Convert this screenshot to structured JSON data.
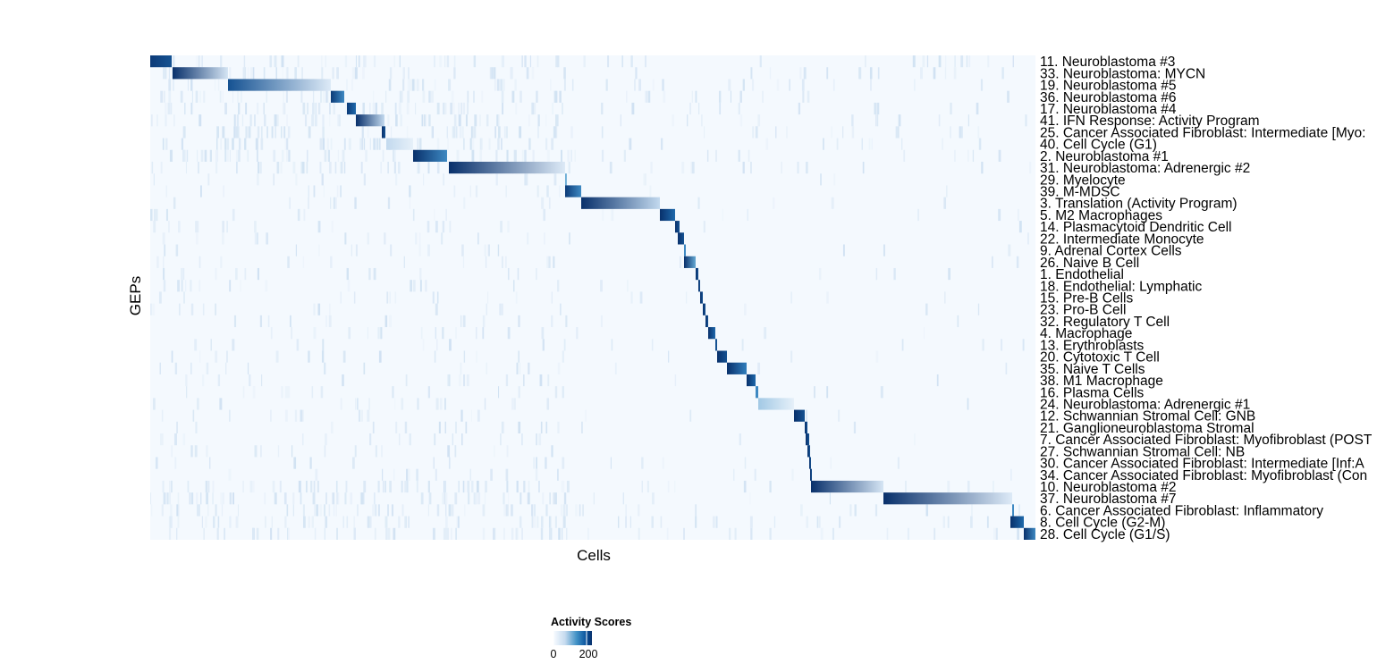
{
  "chart_data": {
    "type": "heatmap",
    "xlabel": "Cells",
    "ylabel": "GEPs",
    "n_cells": 990,
    "legend": {
      "title": "Activity Scores",
      "ticks": [
        0,
        200
      ],
      "range": [
        0,
        230
      ],
      "placement": "bottom"
    },
    "colorscale": [
      "#f7fbff",
      "#c6dbef",
      "#6baed6",
      "#2171b5",
      "#08306b"
    ],
    "rows": [
      {
        "label": "11. Neuroblastoma #3",
        "start": 0,
        "end": 24,
        "v0": 220,
        "v1": 200
      },
      {
        "label": "33. Neuroblastoma: MYCN",
        "start": 25,
        "end": 87,
        "v0": 230,
        "v1": 40
      },
      {
        "label": "19. Neuroblastoma #5",
        "start": 87,
        "end": 202,
        "v0": 200,
        "v1": 30
      },
      {
        "label": "36. Neuroblastoma #6",
        "start": 202,
        "end": 217,
        "v0": 220,
        "v1": 150
      },
      {
        "label": "17. Neuroblastoma #4",
        "start": 220,
        "end": 230,
        "v0": 220,
        "v1": 180
      },
      {
        "label": "41. IFN Response: Activity Program",
        "start": 230,
        "end": 262,
        "v0": 230,
        "v1": 60
      },
      {
        "label": "25. Cancer Associated Fibroblast: Intermediate [Myo:",
        "start": 259,
        "end": 263,
        "v0": 230,
        "v1": 200
      },
      {
        "label": "40. Cell Cycle (G1)",
        "start": 264,
        "end": 294,
        "v0": 60,
        "v1": 20
      },
      {
        "label": "2. Neuroblastoma #1",
        "start": 294,
        "end": 332,
        "v0": 230,
        "v1": 150
      },
      {
        "label": "31. Neuroblastoma: Adrenergic #2",
        "start": 334,
        "end": 464,
        "v0": 230,
        "v1": 30
      },
      {
        "label": "29. Myelocyte",
        "start": 464,
        "end": 466,
        "v0": 120,
        "v1": 100
      },
      {
        "label": "39. M-MDSC",
        "start": 464,
        "end": 482,
        "v0": 220,
        "v1": 150
      },
      {
        "label": "3. Translation (Activity Program)",
        "start": 482,
        "end": 570,
        "v0": 230,
        "v1": 60
      },
      {
        "label": "5. M2 Macrophages",
        "start": 570,
        "end": 587,
        "v0": 230,
        "v1": 180
      },
      {
        "label": "14. Plasmacytoid Dendritic Cell",
        "start": 587,
        "end": 592,
        "v0": 230,
        "v1": 200
      },
      {
        "label": "22. Intermediate Monocyte",
        "start": 590,
        "end": 597,
        "v0": 230,
        "v1": 200
      },
      {
        "label": "9. Adrenal Cortex Cells",
        "start": 597,
        "end": 599,
        "v0": 150,
        "v1": 150
      },
      {
        "label": "26. Naive B Cell",
        "start": 597,
        "end": 610,
        "v0": 230,
        "v1": 120
      },
      {
        "label": "1. Endothelial",
        "start": 610,
        "end": 613,
        "v0": 230,
        "v1": 200
      },
      {
        "label": "18. Endothelial: Lymphatic",
        "start": 613,
        "end": 615,
        "v0": 230,
        "v1": 200
      },
      {
        "label": "15. Pre-B Cells",
        "start": 615,
        "end": 618,
        "v0": 230,
        "v1": 200
      },
      {
        "label": "23. Pro-B Cell",
        "start": 618,
        "end": 621,
        "v0": 230,
        "v1": 200
      },
      {
        "label": "32. Regulatory T Cell",
        "start": 621,
        "end": 624,
        "v0": 230,
        "v1": 200
      },
      {
        "label": "4. Macrophage",
        "start": 624,
        "end": 632,
        "v0": 230,
        "v1": 180
      },
      {
        "label": "13. Erythroblasts",
        "start": 632,
        "end": 634,
        "v0": 200,
        "v1": 200
      },
      {
        "label": "20. Cytotoxic T Cell",
        "start": 634,
        "end": 645,
        "v0": 230,
        "v1": 200
      },
      {
        "label": "35. Naive T Cells",
        "start": 645,
        "end": 667,
        "v0": 230,
        "v1": 160
      },
      {
        "label": "38. M1 Macrophage",
        "start": 667,
        "end": 677,
        "v0": 230,
        "v1": 180
      },
      {
        "label": "16. Plasma Cells",
        "start": 677,
        "end": 680,
        "v0": 150,
        "v1": 150
      },
      {
        "label": "24. Neuroblastoma: Adrenergic #1",
        "start": 680,
        "end": 720,
        "v0": 80,
        "v1": 20
      },
      {
        "label": "12. Schwannian Stromal Cell: GNB",
        "start": 720,
        "end": 732,
        "v0": 230,
        "v1": 200
      },
      {
        "label": "21. Ganglioneuroblastoma Stromal",
        "start": 732,
        "end": 735,
        "v0": 230,
        "v1": 200
      },
      {
        "label": "7. Cancer Associated Fibroblast: Myofibroblast (POST",
        "start": 733,
        "end": 737,
        "v0": 230,
        "v1": 200
      },
      {
        "label": "27. Schwannian Stromal Cell: NB",
        "start": 735,
        "end": 738,
        "v0": 230,
        "v1": 200
      },
      {
        "label": "30. Cancer Associated Fibroblast: Intermediate [Inf:A",
        "start": 737,
        "end": 739,
        "v0": 230,
        "v1": 200
      },
      {
        "label": "34. Cancer Associated Fibroblast: Myofibroblast (Con",
        "start": 738,
        "end": 740,
        "v0": 230,
        "v1": 200
      },
      {
        "label": "10. Neuroblastoma #2",
        "start": 739,
        "end": 820,
        "v0": 230,
        "v1": 40
      },
      {
        "label": "37. Neuroblastoma #7",
        "start": 820,
        "end": 964,
        "v0": 230,
        "v1": 30
      },
      {
        "label": "6. Cancer Associated Fibroblast: Inflammatory",
        "start": 964,
        "end": 966,
        "v0": 150,
        "v1": 150
      },
      {
        "label": "8. Cell Cycle (G2-M)",
        "start": 962,
        "end": 977,
        "v0": 230,
        "v1": 180
      },
      {
        "label": "28. Cell Cycle (G1/S)",
        "start": 977,
        "end": 990,
        "v0": 230,
        "v1": 150
      }
    ]
  }
}
